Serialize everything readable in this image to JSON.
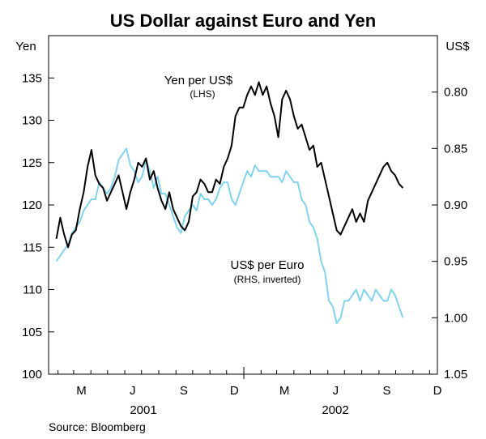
{
  "chart_data": {
    "type": "line",
    "title": "US Dollar against Euro and Yen",
    "left_unit": "Yen",
    "right_unit": "US$",
    "left_axis": {
      "min": 100,
      "max": 140,
      "ticks": [
        "100",
        "105",
        "110",
        "115",
        "120",
        "125",
        "130",
        "135"
      ]
    },
    "right_axis": {
      "min": 0.75,
      "max": 1.05,
      "inverted": true,
      "ticks": [
        "0.80",
        "0.85",
        "0.90",
        "0.95",
        "1.00",
        "1.05"
      ]
    },
    "x_axis": {
      "month_labels": [
        "M",
        "J",
        "S",
        "D",
        "M",
        "J",
        "S",
        "D"
      ],
      "year_labels": [
        "2001",
        "2002"
      ]
    },
    "grid": false,
    "source": "Source: Bloomberg",
    "colors": {
      "yen": "#000000",
      "euro": "#7fd4f2"
    },
    "series": [
      {
        "name": "Yen per US$",
        "annotation": "(LHS)",
        "axis": "left",
        "unit": "yen per US$",
        "x": [
          "2001-01-29",
          "2001-02-05",
          "2001-02-12",
          "2001-02-19",
          "2001-02-26",
          "2001-03-05",
          "2001-03-12",
          "2001-03-19",
          "2001-03-26",
          "2001-04-02",
          "2001-04-09",
          "2001-04-16",
          "2001-04-23",
          "2001-04-30",
          "2001-05-07",
          "2001-05-14",
          "2001-05-21",
          "2001-05-28",
          "2001-06-04",
          "2001-06-11",
          "2001-06-18",
          "2001-06-25",
          "2001-07-02",
          "2001-07-09",
          "2001-07-16",
          "2001-07-23",
          "2001-07-30",
          "2001-08-06",
          "2001-08-13",
          "2001-08-20",
          "2001-08-27",
          "2001-09-03",
          "2001-09-10",
          "2001-09-17",
          "2001-09-24",
          "2001-10-01",
          "2001-10-08",
          "2001-10-15",
          "2001-10-22",
          "2001-10-29",
          "2001-11-05",
          "2001-11-12",
          "2001-11-19",
          "2001-11-26",
          "2001-12-03",
          "2001-12-10",
          "2001-12-17",
          "2001-12-24",
          "2001-12-31",
          "2002-01-07",
          "2002-01-14",
          "2002-01-21",
          "2002-01-28",
          "2002-02-04",
          "2002-02-11",
          "2002-02-18",
          "2002-02-25",
          "2002-03-04",
          "2002-03-11",
          "2002-03-18",
          "2002-03-25",
          "2002-04-01",
          "2002-04-08",
          "2002-04-15",
          "2002-04-22",
          "2002-04-29",
          "2002-05-06",
          "2002-05-13",
          "2002-05-20",
          "2002-05-27",
          "2002-06-03",
          "2002-06-10",
          "2002-06-17",
          "2002-06-24",
          "2002-07-01",
          "2002-07-08",
          "2002-07-15",
          "2002-07-22",
          "2002-07-29",
          "2002-08-05",
          "2002-08-12",
          "2002-08-19",
          "2002-08-26",
          "2002-09-02",
          "2002-09-09",
          "2002-09-16",
          "2002-09-23",
          "2002-09-30",
          "2002-10-07",
          "2002-10-14"
        ],
        "y": [
          116.0,
          118.5,
          116.5,
          115.0,
          116.5,
          117.0,
          119.5,
          121.5,
          124.5,
          126.5,
          123.5,
          122.5,
          122.0,
          120.5,
          121.5,
          122.5,
          123.5,
          121.5,
          119.5,
          121.5,
          123.0,
          125.0,
          124.5,
          125.5,
          123.0,
          124.0,
          122.0,
          120.5,
          119.5,
          121.5,
          119.5,
          118.5,
          117.5,
          117.0,
          118.0,
          121.0,
          121.5,
          123.0,
          122.5,
          121.5,
          121.5,
          123.0,
          122.5,
          124.5,
          125.5,
          127.0,
          130.5,
          131.5,
          131.5,
          133.0,
          134.0,
          133.0,
          134.5,
          133.0,
          134.0,
          132.0,
          130.5,
          128.0,
          132.5,
          133.5,
          132.5,
          130.5,
          129.0,
          129.5,
          128.0,
          126.5,
          127.0,
          124.5,
          125.0,
          123.0,
          121.0,
          119.0,
          117.0,
          116.5,
          117.5,
          118.5,
          119.5,
          118.0,
          119.0,
          118.0,
          120.5,
          121.5,
          122.5,
          123.5,
          124.5,
          125.0,
          124.0,
          123.5,
          122.5,
          122.0
        ]
      },
      {
        "name": "US$ per Euro",
        "annotation": "(RHS, inverted)",
        "axis": "right",
        "unit": "US$ per euro",
        "x": [
          "2001-01-29",
          "2001-02-05",
          "2001-02-12",
          "2001-02-19",
          "2001-02-26",
          "2001-03-05",
          "2001-03-12",
          "2001-03-19",
          "2001-03-26",
          "2001-04-02",
          "2001-04-09",
          "2001-04-16",
          "2001-04-23",
          "2001-04-30",
          "2001-05-07",
          "2001-05-14",
          "2001-05-21",
          "2001-05-28",
          "2001-06-04",
          "2001-06-11",
          "2001-06-18",
          "2001-06-25",
          "2001-07-02",
          "2001-07-09",
          "2001-07-16",
          "2001-07-23",
          "2001-07-30",
          "2001-08-06",
          "2001-08-13",
          "2001-08-20",
          "2001-08-27",
          "2001-09-03",
          "2001-09-10",
          "2001-09-17",
          "2001-09-24",
          "2001-10-01",
          "2001-10-08",
          "2001-10-15",
          "2001-10-22",
          "2001-10-29",
          "2001-11-05",
          "2001-11-12",
          "2001-11-19",
          "2001-11-26",
          "2001-12-03",
          "2001-12-10",
          "2001-12-17",
          "2001-12-24",
          "2001-12-31",
          "2002-01-07",
          "2002-01-14",
          "2002-01-21",
          "2002-01-28",
          "2002-02-04",
          "2002-02-11",
          "2002-02-18",
          "2002-02-25",
          "2002-03-04",
          "2002-03-11",
          "2002-03-18",
          "2002-03-25",
          "2002-04-01",
          "2002-04-08",
          "2002-04-15",
          "2002-04-22",
          "2002-04-29",
          "2002-05-06",
          "2002-05-13",
          "2002-05-20",
          "2002-05-27",
          "2002-06-03",
          "2002-06-10",
          "2002-06-17",
          "2002-06-24",
          "2002-07-01",
          "2002-07-08",
          "2002-07-15",
          "2002-07-22",
          "2002-07-29",
          "2002-08-05",
          "2002-08-12",
          "2002-08-19",
          "2002-08-26",
          "2002-09-02",
          "2002-09-09",
          "2002-09-16",
          "2002-09-23",
          "2002-09-30",
          "2002-10-07",
          "2002-10-14"
        ],
        "y": [
          0.95,
          0.945,
          0.94,
          0.935,
          0.925,
          0.92,
          0.915,
          0.905,
          0.9,
          0.895,
          0.895,
          0.88,
          0.885,
          0.89,
          0.885,
          0.875,
          0.86,
          0.855,
          0.85,
          0.865,
          0.87,
          0.88,
          0.875,
          0.86,
          0.87,
          0.885,
          0.875,
          0.89,
          0.89,
          0.9,
          0.91,
          0.92,
          0.925,
          0.91,
          0.905,
          0.9,
          0.905,
          0.89,
          0.895,
          0.895,
          0.9,
          0.895,
          0.885,
          0.88,
          0.88,
          0.895,
          0.9,
          0.89,
          0.88,
          0.87,
          0.875,
          0.865,
          0.87,
          0.87,
          0.87,
          0.875,
          0.875,
          0.875,
          0.88,
          0.87,
          0.875,
          0.88,
          0.88,
          0.895,
          0.9,
          0.915,
          0.92,
          0.93,
          0.95,
          0.96,
          0.985,
          0.99,
          1.005,
          1.0,
          0.985,
          0.985,
          0.98,
          0.975,
          0.985,
          0.975,
          0.98,
          0.985,
          0.975,
          0.98,
          0.985,
          0.985,
          0.975,
          0.98,
          0.99,
          1.0
        ]
      }
    ]
  }
}
